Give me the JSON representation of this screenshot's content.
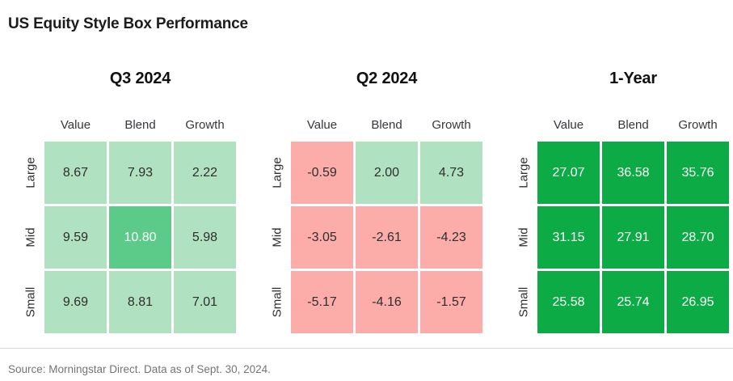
{
  "title": "US Equity Style Box Performance",
  "source_note": "Source: Morningstar Direct. Data as of Sept. 30, 2024.",
  "colors": {
    "positive_light": "#b0e2c1",
    "positive_medium": "#5cca89",
    "positive_strong": "#0cab45",
    "negative_light": "#fcadaa",
    "text_dark": "#2e2e30",
    "text_light": "#ffffff"
  },
  "panels": [
    {
      "title": "Q3 2024",
      "columns": [
        "Value",
        "Blend",
        "Growth"
      ],
      "rows": [
        {
          "label": "Large",
          "cells": [
            {
              "value": "8.67",
              "bg": "#b0e2c1",
              "fg": "#2e2e30"
            },
            {
              "value": "7.93",
              "bg": "#b0e2c1",
              "fg": "#2e2e30"
            },
            {
              "value": "2.22",
              "bg": "#b0e2c1",
              "fg": "#2e2e30"
            }
          ]
        },
        {
          "label": "Mid",
          "cells": [
            {
              "value": "9.59",
              "bg": "#b0e2c1",
              "fg": "#2e2e30"
            },
            {
              "value": "10.80",
              "bg": "#5cca89",
              "fg": "#ffffff"
            },
            {
              "value": "5.98",
              "bg": "#b0e2c1",
              "fg": "#2e2e30"
            }
          ]
        },
        {
          "label": "Small",
          "cells": [
            {
              "value": "9.69",
              "bg": "#b0e2c1",
              "fg": "#2e2e30"
            },
            {
              "value": "8.81",
              "bg": "#b0e2c1",
              "fg": "#2e2e30"
            },
            {
              "value": "7.01",
              "bg": "#b0e2c1",
              "fg": "#2e2e30"
            }
          ]
        }
      ]
    },
    {
      "title": "Q2 2024",
      "columns": [
        "Value",
        "Blend",
        "Growth"
      ],
      "rows": [
        {
          "label": "Large",
          "cells": [
            {
              "value": "-0.59",
              "bg": "#fcadaa",
              "fg": "#2e2e30"
            },
            {
              "value": "2.00",
              "bg": "#b0e2c1",
              "fg": "#2e2e30"
            },
            {
              "value": "4.73",
              "bg": "#b0e2c1",
              "fg": "#2e2e30"
            }
          ]
        },
        {
          "label": "Mid",
          "cells": [
            {
              "value": "-3.05",
              "bg": "#fcadaa",
              "fg": "#2e2e30"
            },
            {
              "value": "-2.61",
              "bg": "#fcadaa",
              "fg": "#2e2e30"
            },
            {
              "value": "-4.23",
              "bg": "#fcadaa",
              "fg": "#2e2e30"
            }
          ]
        },
        {
          "label": "Small",
          "cells": [
            {
              "value": "-5.17",
              "bg": "#fcadaa",
              "fg": "#2e2e30"
            },
            {
              "value": "-4.16",
              "bg": "#fcadaa",
              "fg": "#2e2e30"
            },
            {
              "value": "-1.57",
              "bg": "#fcadaa",
              "fg": "#2e2e30"
            }
          ]
        }
      ]
    },
    {
      "title": "1-Year",
      "columns": [
        "Value",
        "Blend",
        "Growth"
      ],
      "rows": [
        {
          "label": "Large",
          "cells": [
            {
              "value": "27.07",
              "bg": "#0cab45",
              "fg": "#ffffff"
            },
            {
              "value": "36.58",
              "bg": "#0cab45",
              "fg": "#ffffff"
            },
            {
              "value": "35.76",
              "bg": "#0cab45",
              "fg": "#ffffff"
            }
          ]
        },
        {
          "label": "Mid",
          "cells": [
            {
              "value": "31.15",
              "bg": "#0cab45",
              "fg": "#ffffff"
            },
            {
              "value": "27.91",
              "bg": "#0cab45",
              "fg": "#ffffff"
            },
            {
              "value": "28.70",
              "bg": "#0cab45",
              "fg": "#ffffff"
            }
          ]
        },
        {
          "label": "Small",
          "cells": [
            {
              "value": "25.58",
              "bg": "#0cab45",
              "fg": "#ffffff"
            },
            {
              "value": "25.74",
              "bg": "#0cab45",
              "fg": "#ffffff"
            },
            {
              "value": "26.95",
              "bg": "#0cab45",
              "fg": "#ffffff"
            }
          ]
        }
      ]
    }
  ],
  "chart_data": [
    {
      "type": "heatmap",
      "title": "Q3 2024",
      "rows": [
        "Large",
        "Mid",
        "Small"
      ],
      "columns": [
        "Value",
        "Blend",
        "Growth"
      ],
      "values": [
        [
          8.67,
          7.93,
          2.22
        ],
        [
          9.59,
          10.8,
          5.98
        ],
        [
          9.69,
          8.81,
          7.01
        ]
      ]
    },
    {
      "type": "heatmap",
      "title": "Q2 2024",
      "rows": [
        "Large",
        "Mid",
        "Small"
      ],
      "columns": [
        "Value",
        "Blend",
        "Growth"
      ],
      "values": [
        [
          -0.59,
          2.0,
          4.73
        ],
        [
          -3.05,
          -2.61,
          -4.23
        ],
        [
          -5.17,
          -4.16,
          -1.57
        ]
      ]
    },
    {
      "type": "heatmap",
      "title": "1-Year",
      "rows": [
        "Large",
        "Mid",
        "Small"
      ],
      "columns": [
        "Value",
        "Blend",
        "Growth"
      ],
      "values": [
        [
          27.07,
          36.58,
          35.76
        ],
        [
          31.15,
          27.91,
          28.7
        ],
        [
          25.58,
          25.74,
          26.95
        ]
      ]
    }
  ]
}
